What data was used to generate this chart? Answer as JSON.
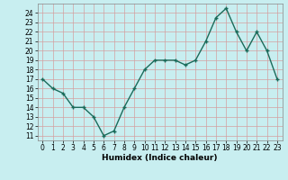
{
  "x": [
    0,
    1,
    2,
    3,
    4,
    5,
    6,
    7,
    8,
    9,
    10,
    11,
    12,
    13,
    14,
    15,
    16,
    17,
    18,
    19,
    20,
    21,
    22,
    23
  ],
  "y": [
    17,
    16,
    15.5,
    14,
    14,
    13,
    11,
    11.5,
    14,
    16,
    18,
    19,
    19,
    19,
    18.5,
    19,
    21,
    23.5,
    24.5,
    22,
    20,
    22,
    20,
    17
  ],
  "line_color": "#1a6b5a",
  "marker": "+",
  "marker_size": 3,
  "bg_color": "#c8eef0",
  "grid_color": "#d4a0a0",
  "xlabel": "Humidex (Indice chaleur)",
  "ylim_min": 10.5,
  "ylim_max": 25.0,
  "yticks": [
    11,
    12,
    13,
    14,
    15,
    16,
    17,
    18,
    19,
    20,
    21,
    22,
    23,
    24
  ],
  "xlim_min": -0.5,
  "xlim_max": 23.5,
  "xticks": [
    0,
    1,
    2,
    3,
    4,
    5,
    6,
    7,
    8,
    9,
    10,
    11,
    12,
    13,
    14,
    15,
    16,
    17,
    18,
    19,
    20,
    21,
    22,
    23
  ],
  "tick_fontsize": 5.5,
  "xlabel_fontsize": 6.5,
  "linewidth": 1.0
}
